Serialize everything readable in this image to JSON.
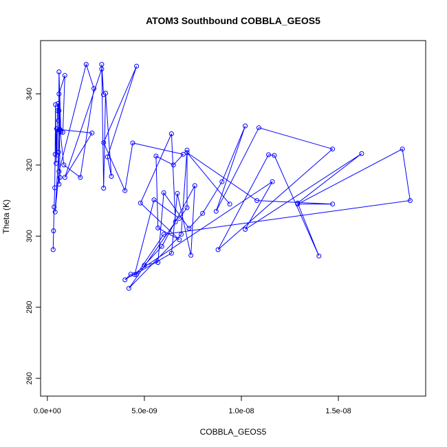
{
  "chart_data": {
    "type": "scatter",
    "title": "ATOM3 Southbound COBBLA_GEOS5",
    "xlabel": "COBBLA_GEOS5",
    "ylabel": "Theta (K)",
    "xlim": [
      -3.5e-10,
      1.95e-08
    ],
    "ylim": [
      255,
      355
    ],
    "x_ticks": [
      0,
      5e-09,
      1e-08,
      1.5e-08
    ],
    "x_tick_labels": [
      "0.0e+00",
      "5.0e-09",
      "1.0e-08",
      "1.5e-08"
    ],
    "y_ticks": [
      260,
      280,
      300,
      320,
      340
    ],
    "y_tick_labels": [
      "260",
      "280",
      "300",
      "320",
      "340"
    ],
    "grid": false,
    "connected": true,
    "line_color": "#0000ff",
    "marker_color": "#0000ff",
    "x": [
      3e-10,
      3.2e-10,
      3.5e-10,
      3.8e-10,
      4e-10,
      4.2e-10,
      4.5e-10,
      4.8e-10,
      5e-10,
      5.2e-10,
      5.5e-10,
      5.8e-10,
      6e-10,
      6.2e-10,
      6.5e-10,
      6e-10,
      5.8e-10,
      6e-10,
      7e-10,
      8e-10,
      9e-10,
      6e-10,
      6.5e-10,
      8.5e-10,
      1.7e-09,
      2.4e-09,
      2e-09,
      6e-10,
      4e-10,
      6.5e-10,
      2.3e-09,
      9e-10,
      2.8e-09,
      2.9e-09,
      2.8e-09,
      2.9e-09,
      3e-09,
      3.3e-09,
      3.1e-09,
      4.6e-09,
      2.9e-09,
      4e-09,
      4.4e-09,
      7e-09,
      6.5e-09,
      5.6e-09,
      5.7e-09,
      6.8e-09,
      4.8e-09,
      6.4e-09,
      6.6e-09,
      4.2e-09,
      6.9e-09,
      7.2e-09,
      7.2e-09,
      6.8e-09,
      5.5e-09,
      4.5e-09,
      6.4e-09,
      6.7e-09,
      7.4e-09,
      7.6e-09,
      5.9e-09,
      5e-09,
      5.7e-09,
      6e-09,
      7.3e-09,
      8e-09,
      9e-09,
      1.02e-08,
      8.7e-09,
      1.09e-08,
      1.47e-08,
      8.8e-09,
      1.14e-08,
      1.17e-08,
      1.4e-08,
      1.29e-08,
      1.62e-08,
      1.02e-08,
      1.16e-08,
      4e-09,
      4.3e-09,
      4.6e-09,
      6e-09,
      1.87e-08,
      1.83e-08,
      1.29e-08,
      1.47e-08,
      1.08e-08,
      7.2e-09,
      9.4e-09
    ],
    "y": [
      296.2,
      301.5,
      308.2,
      313.6,
      323.0,
      337.0,
      320.5,
      330.2,
      322.8,
      335.3,
      337.3,
      332.5,
      335.3,
      329.8,
      316.5,
      314.6,
      323.6,
      346.2,
      329.3,
      329.2,
      345.2,
      340.0,
      329.9,
      320.0,
      316.5,
      341.5,
      348.3,
      318.2,
      306.8,
      330.0,
      329.0,
      316.5,
      347.0,
      339.8,
      348.3,
      313.5,
      340.2,
      316.8,
      322.3,
      347.8,
      326.3,
      312.8,
      326.2,
      323.0,
      320.0,
      322.5,
      302.3,
      299.0,
      309.3,
      328.8,
      304.0,
      285.3,
      300.5,
      324.2,
      308.0,
      305.0,
      310.2,
      289.2,
      295.2,
      312.0,
      294.6,
      314.2,
      297.1,
      291.8,
      292.6,
      312.2,
      302.2,
      306.4,
      315.3,
      331.0,
      307.0,
      330.5,
      324.5,
      296.2,
      322.9,
      322.7,
      294.4,
      309.3,
      323.2,
      301.9,
      315.3,
      287.7,
      289.3,
      289.2,
      300.5,
      310.0,
      324.5,
      309.0,
      309.0,
      310.0,
      323.5,
      309.0
    ]
  }
}
